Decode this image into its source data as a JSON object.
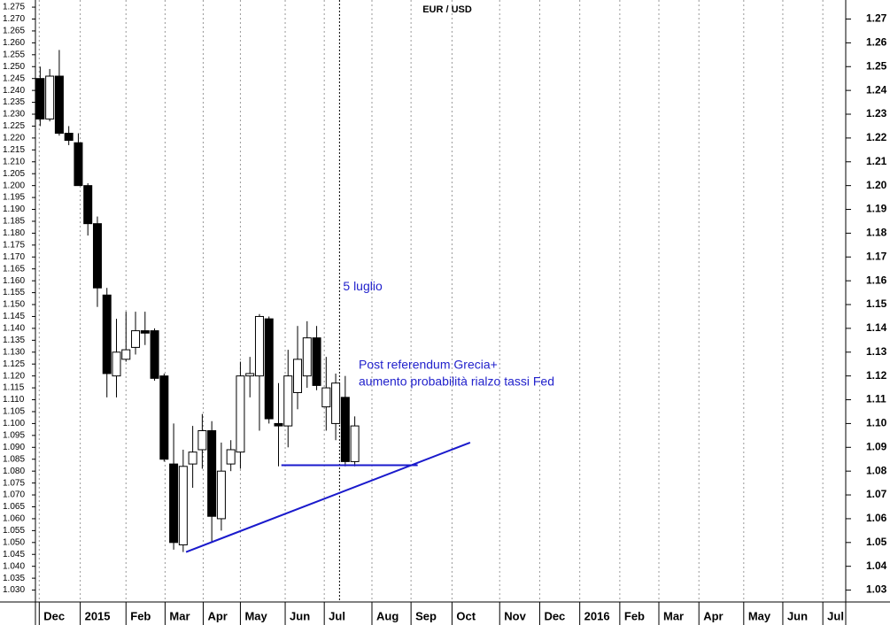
{
  "chart_data": {
    "type": "candlestick",
    "title": "EUR / USD",
    "x": [
      0,
      1,
      2,
      3,
      4,
      5,
      6,
      7,
      8,
      9,
      10,
      11,
      12,
      13,
      14,
      15,
      16,
      17,
      18,
      19,
      20,
      21,
      22,
      23,
      24,
      25,
      26,
      27,
      28,
      29,
      30,
      31,
      32,
      33
    ],
    "open": [
      1.245,
      1.228,
      1.246,
      1.222,
      1.218,
      1.2,
      1.184,
      1.154,
      1.12,
      1.127,
      1.132,
      1.139,
      1.139,
      1.12,
      1.083,
      1.049,
      1.083,
      1.089,
      1.097,
      1.06,
      1.083,
      1.088,
      1.12,
      1.12,
      1.144,
      1.1,
      1.099,
      1.113,
      1.12,
      1.136,
      1.107,
      1.1,
      1.111,
      1.084
    ],
    "high": [
      1.25,
      1.249,
      1.257,
      1.225,
      1.222,
      1.201,
      1.187,
      1.157,
      1.144,
      1.147,
      1.147,
      1.147,
      1.14,
      1.121,
      1.1,
      1.089,
      1.099,
      1.104,
      1.101,
      1.092,
      1.093,
      1.126,
      1.128,
      1.146,
      1.145,
      1.117,
      1.131,
      1.141,
      1.143,
      1.141,
      1.128,
      1.121,
      1.12,
      1.103
    ],
    "low": [
      1.225,
      1.227,
      1.221,
      1.217,
      1.2,
      1.179,
      1.149,
      1.111,
      1.111,
      1.126,
      1.129,
      1.133,
      1.118,
      1.084,
      1.047,
      1.046,
      1.073,
      1.081,
      1.05,
      1.055,
      1.08,
      1.081,
      1.111,
      1.097,
      1.1,
      1.082,
      1.09,
      1.106,
      1.115,
      1.114,
      1.097,
      1.093,
      1.082,
      1.082
    ],
    "close": [
      1.228,
      1.246,
      1.222,
      1.219,
      1.2,
      1.184,
      1.157,
      1.121,
      1.13,
      1.131,
      1.139,
      1.138,
      1.119,
      1.085,
      1.05,
      1.082,
      1.088,
      1.097,
      1.061,
      1.08,
      1.089,
      1.12,
      1.121,
      1.145,
      1.102,
      1.099,
      1.12,
      1.127,
      1.136,
      1.116,
      1.115,
      1.117,
      1.084,
      1.099
    ],
    "up_color": "#ffffff",
    "down_color": "#000000",
    "xlim": [
      -0.5,
      84.5
    ],
    "xticks": [
      {
        "value": -0.1,
        "label": "Dec"
      },
      {
        "value": 4.2,
        "label": "2015"
      },
      {
        "value": 9.0,
        "label": "Feb"
      },
      {
        "value": 13.1,
        "label": "Mar"
      },
      {
        "value": 17.1,
        "label": "Apr"
      },
      {
        "value": 21.0,
        "label": "May"
      },
      {
        "value": 25.7,
        "label": "Jun"
      },
      {
        "value": 29.8,
        "label": "Jul"
      },
      {
        "value": 34.8,
        "label": "Aug"
      },
      {
        "value": 38.9,
        "label": "Sep"
      },
      {
        "value": 43.2,
        "label": "Oct"
      },
      {
        "value": 48.2,
        "label": "Nov"
      },
      {
        "value": 52.4,
        "label": "Dec"
      },
      {
        "value": 56.6,
        "label": "2016"
      },
      {
        "value": 60.8,
        "label": "Feb"
      },
      {
        "value": 64.9,
        "label": "Mar"
      },
      {
        "value": 69.1,
        "label": "Apr"
      },
      {
        "value": 73.8,
        "label": "May"
      },
      {
        "value": 77.9,
        "label": "Jun"
      },
      {
        "value": 82.1,
        "label": "Jul"
      }
    ],
    "ylim": [
      1.025,
      1.278
    ],
    "yticks": [
      {
        "value": 1.03,
        "label": "1.030"
      },
      1.035,
      {
        "value": 1.04,
        "label": "1.040"
      },
      1.045,
      {
        "value": 1.05,
        "label": "1.050"
      },
      1.055,
      {
        "value": 1.06,
        "label": "1.060"
      },
      1.065,
      {
        "value": 1.07,
        "label": "1.070"
      },
      1.075,
      {
        "value": 1.08,
        "label": "1.080"
      },
      1.085,
      {
        "value": 1.09,
        "label": "1.090"
      },
      1.095,
      {
        "value": 1.1,
        "label": "1.100"
      },
      1.105,
      {
        "value": 1.11,
        "label": "1.110"
      },
      1.115,
      {
        "value": 1.12,
        "label": "1.120"
      },
      1.125,
      {
        "value": 1.13,
        "label": "1.130"
      },
      1.135,
      {
        "value": 1.14,
        "label": "1.140"
      },
      1.145,
      {
        "value": 1.15,
        "label": "1.150"
      },
      1.155,
      {
        "value": 1.16,
        "label": "1.160"
      },
      1.165,
      {
        "value": 1.17,
        "label": "1.170"
      },
      1.175,
      {
        "value": 1.18,
        "label": "1.180"
      },
      1.185,
      {
        "value": 1.19,
        "label": "1.190"
      },
      1.195,
      {
        "value": 1.2,
        "label": "1.200"
      },
      1.205,
      {
        "value": 1.21,
        "label": "1.210"
      },
      1.215,
      {
        "value": 1.22,
        "label": "1.220"
      },
      1.225,
      {
        "value": 1.23,
        "label": "1.230"
      },
      1.235,
      {
        "value": 1.24,
        "label": "1.240"
      },
      1.245,
      {
        "value": 1.25,
        "label": "1.250"
      },
      1.255,
      {
        "value": 1.26,
        "label": "1.260"
      },
      1.265,
      {
        "value": 1.27,
        "label": "1.270"
      },
      1.275
    ],
    "y2ticks": [
      1.03,
      1.04,
      1.05,
      1.06,
      1.07,
      1.08,
      1.09,
      {
        "value": 1.1,
        "label": "1.10"
      },
      1.11,
      1.12,
      1.13,
      1.14,
      1.15,
      1.16,
      1.17,
      1.18,
      1.19,
      {
        "value": 1.2,
        "label": "1.20"
      },
      1.21,
      1.22,
      1.23,
      1.24,
      1.25,
      1.26,
      1.27
    ],
    "grid": true,
    "lines": [
      {
        "x": [
          15.3,
          45.1
        ],
        "y": [
          1.046,
          1.092
        ],
        "color": "#1a1acc"
      },
      {
        "x": [
          25.3,
          39.6
        ],
        "y": [
          1.0825,
          1.0825
        ],
        "color": "#1a1acc"
      }
    ],
    "event_line": {
      "x": 31.4,
      "label": "5 luglio"
    },
    "annotation": [
      "Post referendum Grecia+",
      "aumento probabilità rialzo tassi Fed"
    ]
  }
}
